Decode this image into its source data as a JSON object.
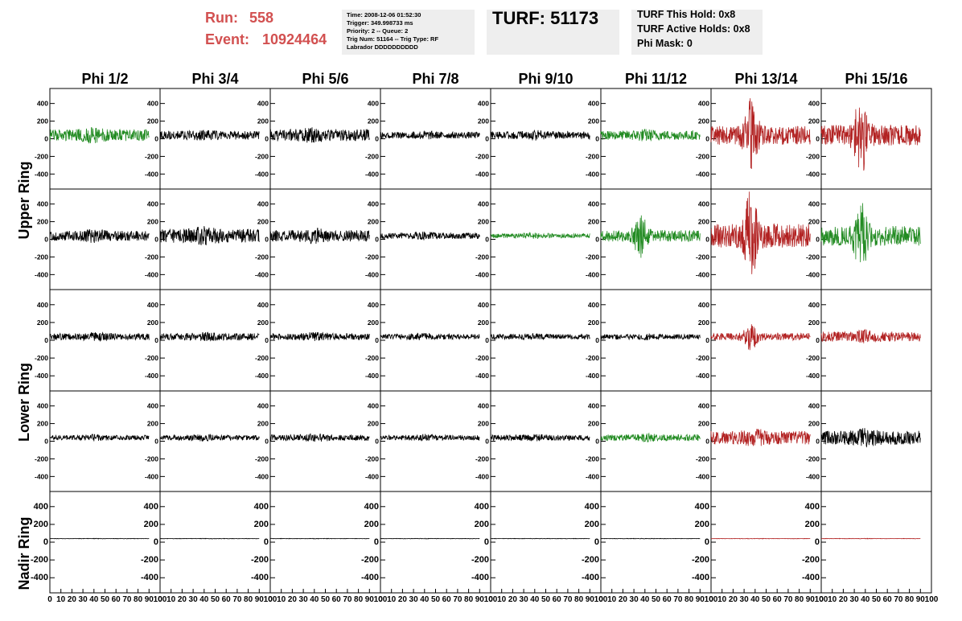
{
  "header": {
    "run_label": "Run:",
    "run": "558",
    "event_label": "Event:",
    "event": "10924464",
    "info": [
      "Time: 2008-12-06 01:52:30",
      "Trigger: 349.998733 ms",
      "Priority: 2 -- Queue: 2",
      "Trig Num: 51164 -- Trig Type: RF",
      "Labrador DDDDDDDDDD"
    ],
    "turf": "TURF: 51173",
    "turf_info": [
      "TURF This Hold: 0x8",
      "TURF Active Holds: 0x8",
      "Phi Mask: 0"
    ]
  },
  "columns": [
    "Phi 1/2",
    "Phi 3/4",
    "Phi 5/6",
    "Phi 7/8",
    "Phi 9/10",
    "Phi 11/12",
    "Phi 13/14",
    "Phi 15/16"
  ],
  "row_labels": [
    "Upper Ring",
    "Lower Ring",
    "Nadir Ring"
  ],
  "ylim": [
    -570,
    570
  ],
  "yticks": [
    400,
    200,
    0,
    -200,
    -400
  ],
  "xlim": [
    0,
    100
  ],
  "xticks": [
    0,
    10,
    20,
    30,
    40,
    50,
    60,
    70,
    80,
    90,
    100
  ],
  "panels": [
    [
      {
        "color": "#228b22",
        "peak": 90
      },
      {
        "color": "#000000",
        "peak": 60
      },
      {
        "color": "#000000",
        "peak": 90
      },
      {
        "color": "#000000",
        "peak": 50
      },
      {
        "color": "#000000",
        "peak": 60
      },
      {
        "color": "#228b22",
        "peak": 70
      },
      {
        "color": "#b22222",
        "peak": 420
      },
      {
        "color": "#b22222",
        "peak": 400
      }
    ],
    [
      {
        "color": "#000000",
        "peak": 80
      },
      {
        "color": "#000000",
        "peak": 110
      },
      {
        "color": "#000000",
        "peak": 90
      },
      {
        "color": "#000000",
        "peak": 50
      },
      {
        "color": "#228b22",
        "peak": 35
      },
      {
        "color": "#228b22",
        "peak": 250
      },
      {
        "color": "#b22222",
        "peak": 500
      },
      {
        "color": "#228b22",
        "peak": 370
      }
    ],
    [
      {
        "color": "#000000",
        "peak": 50
      },
      {
        "color": "#000000",
        "peak": 50
      },
      {
        "color": "#000000",
        "peak": 50
      },
      {
        "color": "#000000",
        "peak": 40
      },
      {
        "color": "#000000",
        "peak": 40
      },
      {
        "color": "#000000",
        "peak": 40
      },
      {
        "color": "#b22222",
        "peak": 150
      },
      {
        "color": "#b22222",
        "peak": 80
      }
    ],
    [
      {
        "color": "#000000",
        "peak": 40
      },
      {
        "color": "#000000",
        "peak": 40
      },
      {
        "color": "#000000",
        "peak": 45
      },
      {
        "color": "#000000",
        "peak": 40
      },
      {
        "color": "#000000",
        "peak": 40
      },
      {
        "color": "#228b22",
        "peak": 50
      },
      {
        "color": "#b22222",
        "peak": 100
      },
      {
        "color": "#000000",
        "peak": 110
      }
    ],
    [
      {
        "color": "#000000",
        "peak": 3
      },
      {
        "color": "#000000",
        "peak": 3
      },
      {
        "color": "#000000",
        "peak": 3
      },
      {
        "color": "#000000",
        "peak": 3
      },
      {
        "color": "#000000",
        "peak": 3
      },
      {
        "color": "#000000",
        "peak": 3
      },
      {
        "color": "#b22222",
        "peak": 3
      },
      {
        "color": "#b22222",
        "peak": 3
      }
    ]
  ]
}
